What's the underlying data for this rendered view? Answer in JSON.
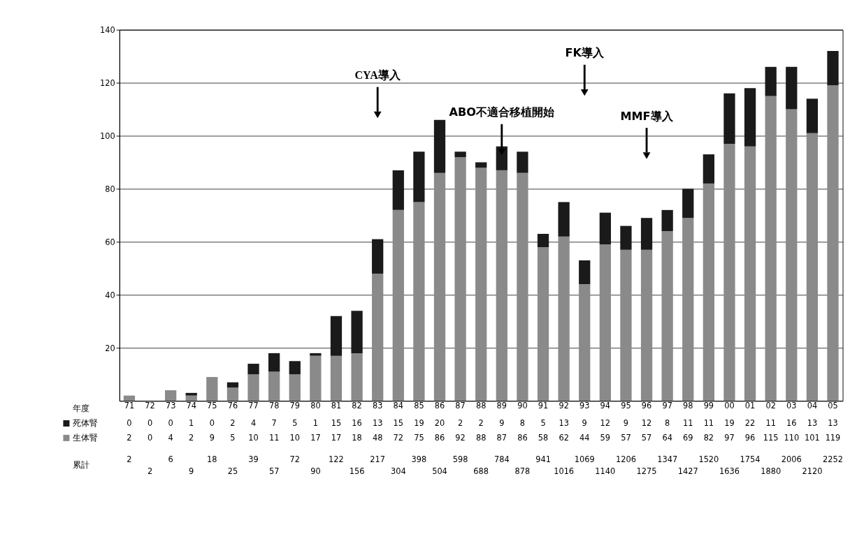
{
  "chart_data": {
    "type": "bar",
    "stacked": true,
    "xlabel": "年度",
    "categories": [
      "71",
      "72",
      "73",
      "74",
      "75",
      "76",
      "77",
      "78",
      "79",
      "80",
      "81",
      "82",
      "83",
      "84",
      "85",
      "86",
      "87",
      "88",
      "89",
      "90",
      "91",
      "92",
      "93",
      "94",
      "95",
      "96",
      "97",
      "98",
      "99",
      "00",
      "01",
      "02",
      "03",
      "04",
      "05"
    ],
    "series": [
      {
        "name": "生体腎",
        "color": "#8a8a8a",
        "values": [
          2,
          0,
          4,
          2,
          9,
          5,
          10,
          11,
          10,
          17,
          17,
          18,
          48,
          72,
          75,
          86,
          92,
          88,
          87,
          86,
          58,
          62,
          44,
          59,
          57,
          57,
          64,
          69,
          82,
          97,
          96,
          115,
          110,
          101,
          119
        ]
      },
      {
        "name": "死体腎",
        "color": "#1a1a1a",
        "values": [
          0,
          0,
          0,
          1,
          0,
          2,
          4,
          7,
          5,
          1,
          15,
          16,
          13,
          15,
          19,
          20,
          2,
          2,
          9,
          8,
          5,
          13,
          9,
          12,
          9,
          12,
          8,
          11,
          11,
          19,
          22,
          11,
          16,
          13,
          13
        ]
      }
    ],
    "ylim": [
      0,
      140
    ],
    "yticks": [
      20,
      40,
      60,
      80,
      100,
      120,
      140
    ],
    "grid": "y",
    "legend": "bottom",
    "data_labels": true,
    "annotations": [
      "CYA導入",
      "ABO不適合移植開始",
      "FK導入",
      "MMF導入",
      "累計",
      "2",
      "2",
      "6",
      "9",
      "18",
      "25",
      "39",
      "57",
      "72",
      "90",
      "122",
      "156",
      "217",
      "304",
      "398",
      "504",
      "598",
      "688",
      "784",
      "878",
      "941",
      "1016",
      "1069",
      "1140",
      "1206",
      "1275",
      "1347",
      "1427",
      "1520",
      "1636",
      "1754",
      "1880",
      "2006",
      "2120",
      "2252"
    ]
  }
}
